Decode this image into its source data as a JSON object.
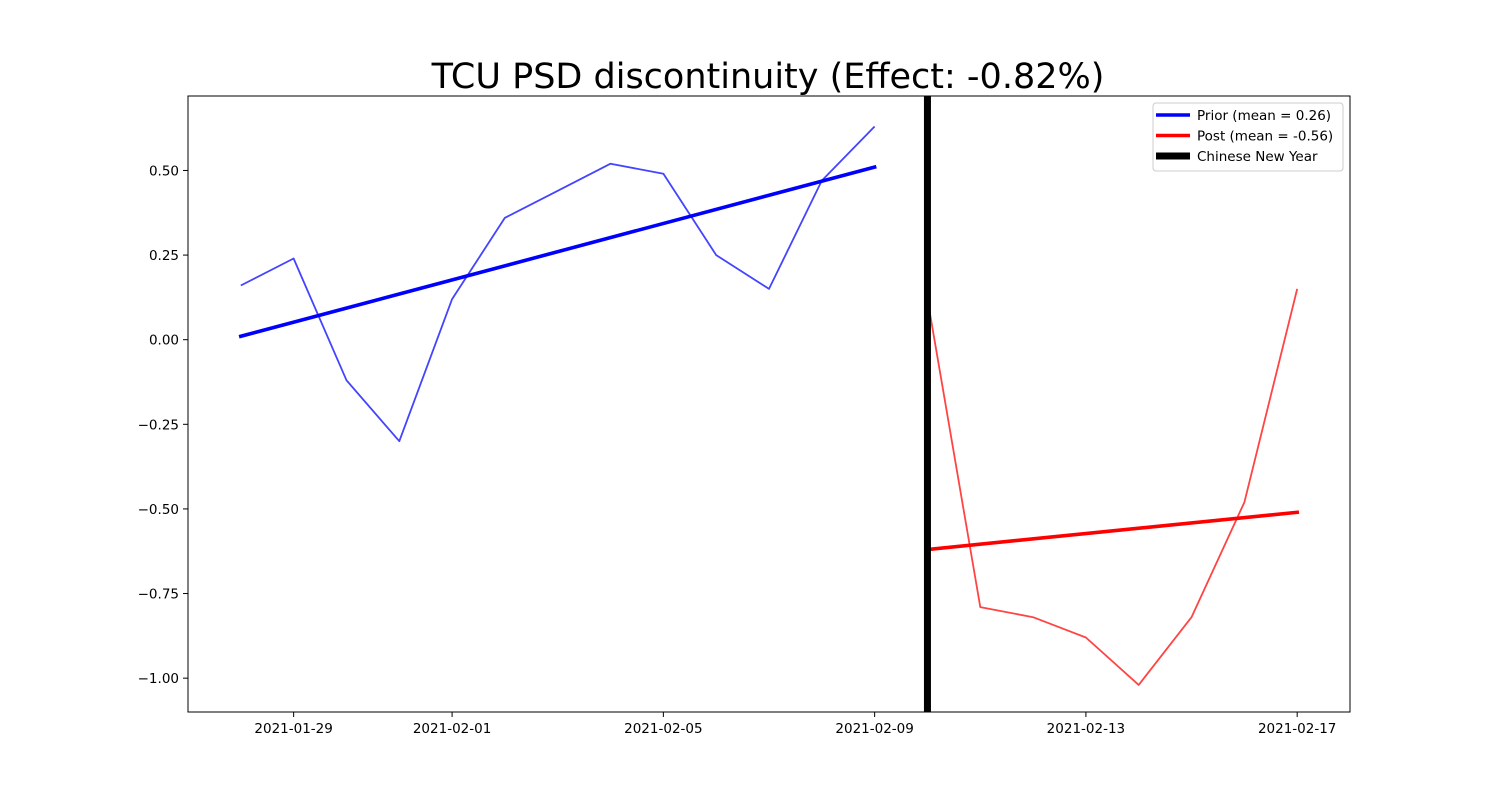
{
  "chart_data": {
    "type": "line",
    "title": "TCU PSD discontinuity (Effect: -0.82%)",
    "xlabel": "",
    "ylabel": "",
    "x_axis": {
      "type": "date",
      "range": [
        "2021-01-27",
        "2021-02-18"
      ],
      "ticks": [
        "2021-01-29",
        "2021-02-01",
        "2021-02-05",
        "2021-02-09",
        "2021-02-13",
        "2021-02-17"
      ]
    },
    "y_axis": {
      "range": [
        -1.1,
        0.72
      ],
      "ticks": [
        0.5,
        0.25,
        0.0,
        -0.25,
        -0.5,
        -0.75,
        -1.0
      ],
      "tick_labels": [
        "0.50",
        "0.25",
        "0.00",
        "−0.25",
        "−0.50",
        "−0.75",
        "−1.00"
      ]
    },
    "grid": false,
    "legend": {
      "placement": "top-right",
      "entries": [
        {
          "label": "Prior (mean = 0.26)",
          "color": "#0000ff"
        },
        {
          "label": "Post (mean = -0.56)",
          "color": "#ff0000"
        },
        {
          "label": "Chinese New Year",
          "color": "#000000"
        }
      ]
    },
    "series": [
      {
        "role": "prior-data",
        "color": "#4444ff",
        "x": [
          "2021-01-28",
          "2021-01-29",
          "2021-01-30",
          "2021-01-31",
          "2021-02-01",
          "2021-02-02",
          "2021-02-03",
          "2021-02-04",
          "2021-02-05",
          "2021-02-06",
          "2021-02-07",
          "2021-02-08",
          "2021-02-09"
        ],
        "values": [
          0.16,
          0.24,
          -0.12,
          -0.3,
          0.12,
          0.36,
          0.44,
          0.52,
          0.49,
          0.25,
          0.15,
          0.47,
          0.63
        ]
      },
      {
        "role": "post-data",
        "color": "#ff4444",
        "x": [
          "2021-02-10",
          "2021-02-11",
          "2021-02-12",
          "2021-02-13",
          "2021-02-14",
          "2021-02-15",
          "2021-02-16",
          "2021-02-17"
        ],
        "values": [
          0.12,
          -0.79,
          -0.82,
          -0.88,
          -1.02,
          -0.82,
          -0.48,
          0.15
        ]
      },
      {
        "name": "Prior (mean = 0.26)",
        "role": "prior-trend",
        "color": "#0000ff",
        "x": [
          "2021-01-28",
          "2021-02-09"
        ],
        "values": [
          0.01,
          0.51
        ]
      },
      {
        "name": "Post (mean = -0.56)",
        "role": "post-trend",
        "color": "#ff0000",
        "x": [
          "2021-02-10",
          "2021-02-17"
        ],
        "values": [
          -0.62,
          -0.51
        ]
      }
    ],
    "annotations": [
      {
        "type": "vline",
        "label": "Chinese New Year",
        "x": "2021-02-10",
        "color": "#000000"
      }
    ]
  }
}
